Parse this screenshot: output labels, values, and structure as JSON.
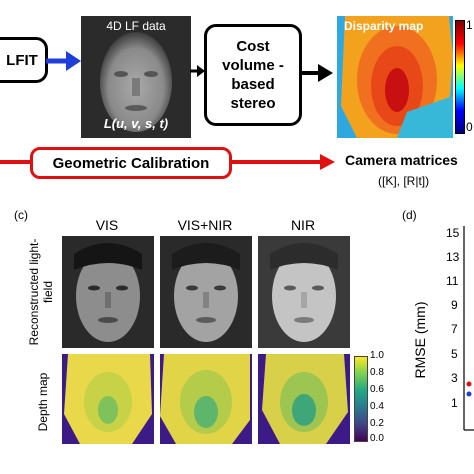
{
  "top": {
    "lfit_label": "LFIT",
    "lf_data_title": "4D LF data",
    "lf_data_formula": "L(u, v, s, t)",
    "cost_volume_label": "Cost volume -based stereo",
    "disparity_title": "Disparity map",
    "disparity_ticks": [
      "1",
      "0"
    ]
  },
  "calibration": {
    "label": "Geometric Calibration",
    "output_title": "Camera matrices",
    "output_formula": "([K], [R|t])"
  },
  "panel_c": {
    "tag": "(c)",
    "col_vis": "VIS",
    "col_vis_nir": "VIS+NIR",
    "col_nir": "NIR",
    "row_reconstructed": "Reconstructed light-field",
    "row_depth": "Depth map",
    "colorbar_ticks": [
      "1.0",
      "0.8",
      "0.6",
      "0.4",
      "0.2",
      "0.0"
    ]
  },
  "panel_d": {
    "tag": "(d)",
    "ylabel": "RMSE (mm)",
    "yticks": [
      "15",
      "13",
      "11",
      "9",
      "7",
      "5",
      "3",
      "1"
    ]
  },
  "colors": {
    "arrow_blue": "#1f3fd8",
    "calibration_red": "#e01010",
    "depth_yellow": "#e8d84a",
    "depth_purple": "#3d1b86"
  }
}
